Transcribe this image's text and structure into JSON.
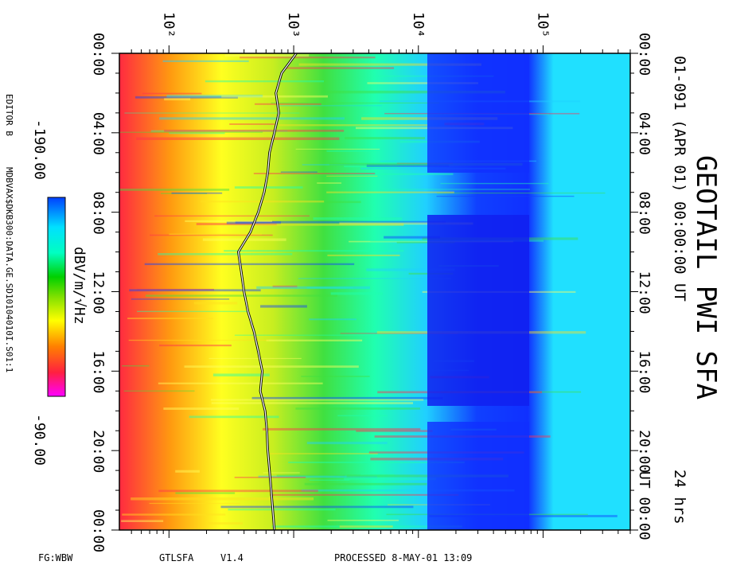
{
  "chart_data": {
    "type": "heatmap",
    "title": "GEOTAIL PWI SFA",
    "subtitle": "01-091 (APR 01) 00:00:00 UT",
    "duration": "24 hrs",
    "time_axis": {
      "label": "UT",
      "range_hours": [
        0,
        24
      ],
      "ticks": [
        "00:00",
        "04:00",
        "08:00",
        "12:00",
        "16:00",
        "20:00",
        "00:00"
      ],
      "ut_tick_label": "UT 00:00"
    },
    "freq_axis": {
      "scale": "log",
      "unit": "Hz",
      "range": [
        40,
        500000
      ],
      "tick_labels": [
        "10²",
        "10³",
        "10⁴",
        "10⁵"
      ],
      "tick_values": [
        100,
        1000,
        10000,
        100000
      ]
    },
    "colorbar": {
      "label": "dBV/m/√Hz",
      "min_label": "-190.00",
      "max_label": "-90.00",
      "min": -190,
      "max": -90,
      "colors": [
        "#ff00ff",
        "#ff2040",
        "#ff8000",
        "#ffff00",
        "#80e000",
        "#00d000",
        "#00ffc0",
        "#00e0ff",
        "#0040ff"
      ]
    },
    "overlay_line": {
      "color": "#ffffff",
      "outline": "#000000",
      "freq_hz": [
        [
          0,
          1050
        ],
        [
          1,
          800
        ],
        [
          2,
          720
        ],
        [
          3,
          760
        ],
        [
          4,
          700
        ],
        [
          5,
          640
        ],
        [
          6,
          620
        ],
        [
          7,
          580
        ],
        [
          8,
          520
        ],
        [
          9,
          450
        ],
        [
          10,
          360
        ],
        [
          11,
          380
        ],
        [
          12,
          400
        ],
        [
          13,
          430
        ],
        [
          14,
          480
        ],
        [
          15,
          520
        ],
        [
          16,
          560
        ],
        [
          17,
          540
        ],
        [
          18,
          590
        ],
        [
          19,
          610
        ],
        [
          20,
          620
        ],
        [
          21,
          640
        ],
        [
          22,
          660
        ],
        [
          23,
          680
        ],
        [
          24,
          700
        ]
      ]
    }
  },
  "labels": {
    "editor": "EDITOR B",
    "source_file": "MDBVAX$DKB300:DATA.GE.SD10104010I.S01:1",
    "footer_left": "FG:WBW",
    "footer_program": "GTLSFA",
    "footer_version": "V1.4",
    "footer_processed": "PROCESSED  8-MAY-01  13:09"
  }
}
